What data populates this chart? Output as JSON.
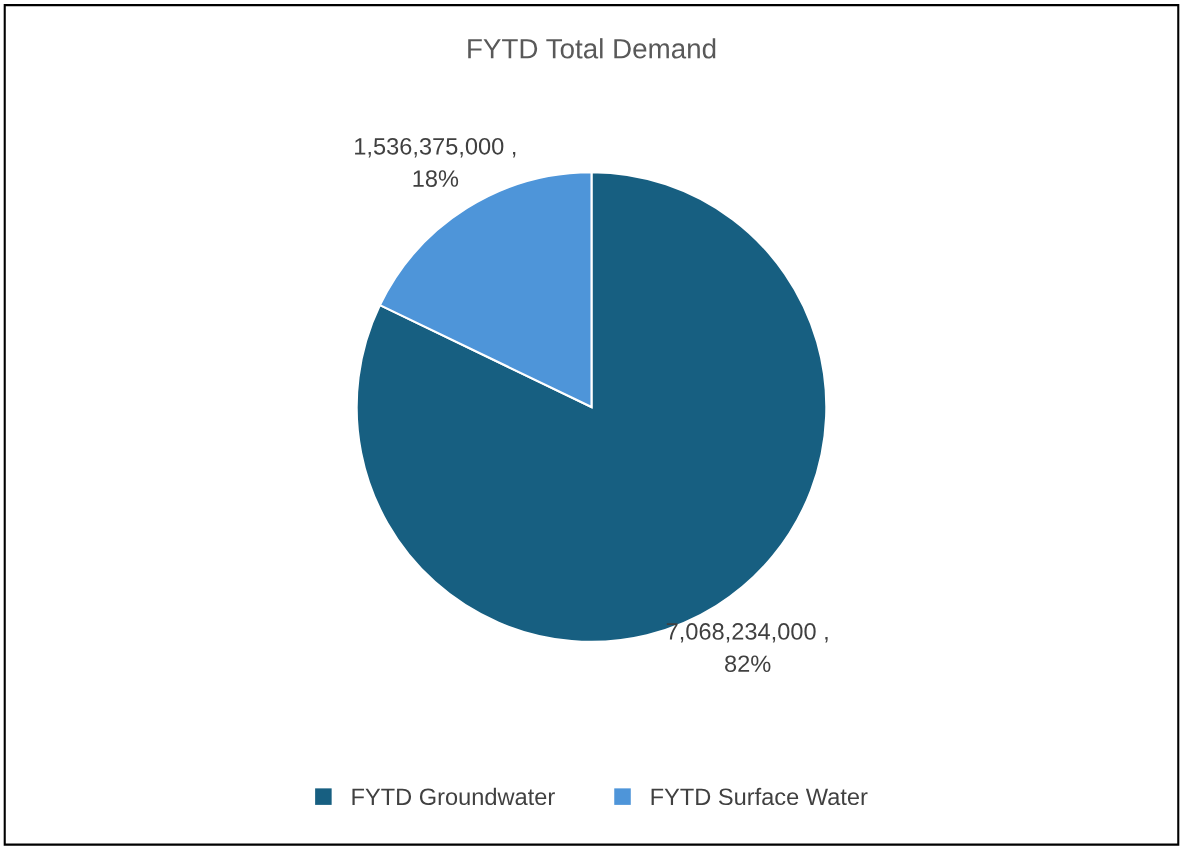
{
  "chart_data": {
    "type": "pie",
    "title": "FYTD Total Demand",
    "categories": [
      "FYTD Groundwater",
      "FYTD Surface Water"
    ],
    "values": [
      7068234000,
      1536375000
    ],
    "colors": [
      "#175f81",
      "#4e95d9"
    ],
    "value_labels": [
      "7,068,234,000 ,\n82%",
      "1,536,375,000 ,\n18%"
    ],
    "legend": "bottom"
  }
}
